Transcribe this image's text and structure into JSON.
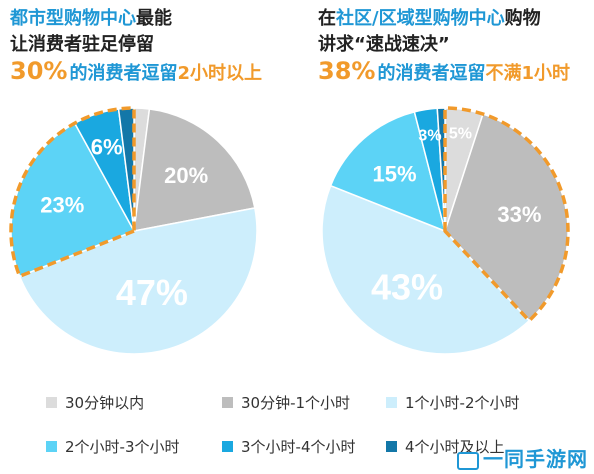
{
  "left_headline": {
    "line1_blue": "都市型购物中心",
    "line1_dark": "最能",
    "line2_dark": "让消费者驻足停留",
    "line3_percent": "30%",
    "line3_blue": "的消费者逗留",
    "line3_orange": "2小时以上"
  },
  "right_headline": {
    "line1_dark_a": "在",
    "line1_blue": "社区/区域型购物中心",
    "line1_dark_b": "购物",
    "line2_dark": "讲求“速战速决”",
    "line3_percent": "38%",
    "line3_blue": "的消费者逗留",
    "line3_orange": "不满1小时"
  },
  "colors": {
    "within30": "#dcdcdc",
    "min30_1h": "#bdbdbd",
    "h1_2": "#cdeefc",
    "h2_3": "#5cd3f6",
    "h3_4": "#1aa8e0",
    "h4plus": "#1377a8",
    "highlight": "#f19a2b"
  },
  "legend": [
    {
      "label": "30分钟以内",
      "color": "#dcdcdc"
    },
    {
      "label": "30分钟-1个小时",
      "color": "#bdbdbd"
    },
    {
      "label": "1个小时-2个小时",
      "color": "#cdeefc"
    },
    {
      "label": "2个小时-3个小时",
      "color": "#5cd3f6"
    },
    {
      "label": "3个小时-4个小时",
      "color": "#1aa8e0"
    },
    {
      "label": "4个小时及以上",
      "color": "#1377a8"
    }
  ],
  "watermark": "一同手游网",
  "chart_data": [
    {
      "type": "pie",
      "title": "",
      "categories": [
        "30分钟以内",
        "30分钟-1个小时",
        "1个小时-2个小时",
        "2个小时-3个小时",
        "3个小时-4个小时",
        "4个小时及以上"
      ],
      "values": [
        2,
        20,
        47,
        23,
        6,
        2
      ],
      "labels": [
        "",
        "20%",
        "47%",
        "23%",
        "6%",
        ""
      ],
      "highlighted": [
        "2个小时-3个小时",
        "3个小时-4个小时",
        "4个小时及以上"
      ]
    },
    {
      "type": "pie",
      "title": "",
      "categories": [
        "30分钟以内",
        "30分钟-1个小时",
        "1个小时-2个小时",
        "2个小时-3个小时",
        "3个小时-4个小时",
        "4个小时及以上"
      ],
      "values": [
        5,
        33,
        43,
        15,
        3,
        1
      ],
      "labels": [
        "5%",
        "33%",
        "43%",
        "15%",
        "3%",
        ""
      ],
      "highlighted": [
        "30分钟以内",
        "30分钟-1个小时"
      ]
    }
  ]
}
